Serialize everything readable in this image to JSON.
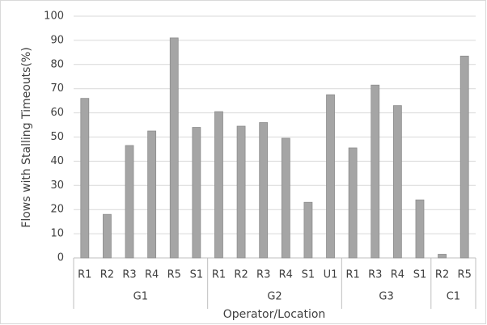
{
  "chart_data": {
    "type": "bar",
    "x_label": "Operator/Location",
    "y_label": "Flows  with Stalling Timeouts(%)",
    "groups": [
      {
        "label": "G1",
        "categories": [
          "R1",
          "R2",
          "R3",
          "R4",
          "R5",
          "S1"
        ]
      },
      {
        "label": "G2",
        "categories": [
          "R1",
          "R2",
          "R3",
          "R4",
          "S1",
          "U1"
        ]
      },
      {
        "label": "G3",
        "categories": [
          "R1",
          "R3",
          "R4",
          "S1"
        ]
      },
      {
        "label": "C1",
        "categories": [
          "R2",
          "R5"
        ]
      }
    ],
    "values": [
      66,
      18,
      46.5,
      52.5,
      91,
      54,
      60.5,
      54.5,
      56,
      49.5,
      23,
      67.5,
      45.5,
      71.5,
      63,
      24,
      1.5,
      83.5
    ],
    "color": "#a5a5a5",
    "ylim": [
      0,
      100
    ],
    "yticks": [
      0,
      10,
      20,
      30,
      40,
      50,
      60,
      70,
      80,
      90,
      100
    ],
    "grid": true
  }
}
